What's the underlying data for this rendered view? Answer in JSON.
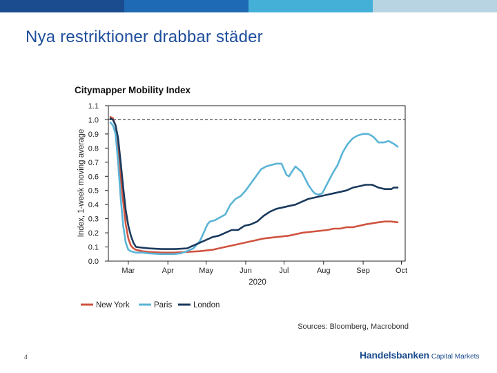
{
  "slide": {
    "title": "Nya restriktioner drabbar städer",
    "page_number": "4",
    "brand_name": "Handelsbanken",
    "brand_suffix": "Capital Markets",
    "top_bar_colors": [
      "#1b4c8f",
      "#1f6ab4",
      "#44b0d8",
      "#b8d4e3"
    ]
  },
  "chart_data": {
    "type": "line",
    "title": "Citymapper Mobility Index",
    "ylabel": "Index, 1-week moving average",
    "xlabel": "2020",
    "source": "Sources: Bloomberg, Macrobond",
    "ylim": [
      0.0,
      1.1
    ],
    "yticks": [
      "0.0",
      "0.1",
      "0.2",
      "0.3",
      "0.4",
      "0.5",
      "0.6",
      "0.7",
      "0.8",
      "0.9",
      "1.0",
      "1.1"
    ],
    "xlim": [
      0,
      225
    ],
    "xticks": [
      {
        "label": "Mar",
        "x": 14
      },
      {
        "label": "Apr",
        "x": 45
      },
      {
        "label": "May",
        "x": 75
      },
      {
        "label": "Jun",
        "x": 106
      },
      {
        "label": "Jul",
        "x": 136
      },
      {
        "label": "Aug",
        "x": 167
      },
      {
        "label": "Sep",
        "x": 198
      },
      {
        "label": "Oct",
        "x": 228
      }
    ],
    "reference_line": {
      "y": 1.0,
      "style": "dashed"
    },
    "x_unit": "days since 2020-02-15",
    "series": [
      {
        "name": "New York",
        "color": "#d0533f",
        "x": [
          0,
          2,
          4,
          6,
          8,
          10,
          12,
          14,
          16,
          18,
          20,
          25,
          30,
          40,
          50,
          60,
          70,
          80,
          90,
          100,
          110,
          120,
          130,
          140,
          150,
          160,
          170,
          175,
          180,
          185,
          190,
          200,
          210,
          215,
          220,
          225
        ],
        "y": [
          1.02,
          1.01,
          0.96,
          0.82,
          0.6,
          0.42,
          0.26,
          0.16,
          0.11,
          0.09,
          0.08,
          0.07,
          0.065,
          0.06,
          0.06,
          0.065,
          0.07,
          0.08,
          0.1,
          0.12,
          0.14,
          0.16,
          0.17,
          0.18,
          0.2,
          0.21,
          0.22,
          0.23,
          0.23,
          0.24,
          0.24,
          0.26,
          0.275,
          0.28,
          0.28,
          0.275
        ]
      },
      {
        "name": "Paris",
        "color": "#5ab4d6",
        "x": [
          0,
          2,
          4,
          6,
          8,
          10,
          12,
          14,
          16,
          18,
          20,
          25,
          30,
          40,
          50,
          55,
          60,
          65,
          70,
          73,
          76,
          78,
          82,
          86,
          90,
          94,
          98,
          102,
          106,
          110,
          114,
          118,
          122,
          126,
          130,
          134,
          136,
          138,
          140,
          142,
          145,
          150,
          155,
          158,
          160,
          163,
          166,
          170,
          174,
          178,
          182,
          186,
          190,
          194,
          198,
          202,
          206,
          210,
          214,
          218,
          222,
          225
        ],
        "y": [
          0.98,
          0.96,
          0.9,
          0.7,
          0.45,
          0.25,
          0.13,
          0.08,
          0.07,
          0.065,
          0.06,
          0.06,
          0.055,
          0.05,
          0.05,
          0.055,
          0.07,
          0.09,
          0.14,
          0.2,
          0.26,
          0.28,
          0.29,
          0.31,
          0.33,
          0.4,
          0.44,
          0.46,
          0.5,
          0.55,
          0.6,
          0.65,
          0.67,
          0.68,
          0.69,
          0.69,
          0.65,
          0.61,
          0.6,
          0.63,
          0.67,
          0.63,
          0.54,
          0.5,
          0.48,
          0.47,
          0.48,
          0.55,
          0.62,
          0.68,
          0.77,
          0.83,
          0.87,
          0.89,
          0.9,
          0.9,
          0.88,
          0.84,
          0.84,
          0.85,
          0.83,
          0.81
        ]
      },
      {
        "name": "London",
        "color": "#1b3a5e",
        "x": [
          0,
          2,
          4,
          6,
          8,
          10,
          12,
          14,
          16,
          18,
          20,
          25,
          30,
          40,
          50,
          60,
          65,
          70,
          75,
          80,
          85,
          90,
          95,
          100,
          105,
          110,
          115,
          120,
          125,
          130,
          135,
          140,
          145,
          150,
          155,
          160,
          165,
          170,
          175,
          180,
          185,
          190,
          195,
          200,
          205,
          210,
          215,
          220,
          222,
          225
        ],
        "y": [
          1.01,
          1.0,
          0.96,
          0.87,
          0.7,
          0.52,
          0.36,
          0.25,
          0.18,
          0.13,
          0.1,
          0.095,
          0.09,
          0.085,
          0.085,
          0.09,
          0.11,
          0.13,
          0.15,
          0.17,
          0.18,
          0.2,
          0.22,
          0.22,
          0.25,
          0.26,
          0.28,
          0.32,
          0.35,
          0.37,
          0.38,
          0.39,
          0.4,
          0.42,
          0.44,
          0.45,
          0.46,
          0.47,
          0.48,
          0.49,
          0.5,
          0.52,
          0.53,
          0.54,
          0.54,
          0.52,
          0.51,
          0.51,
          0.52,
          0.52
        ]
      }
    ]
  }
}
